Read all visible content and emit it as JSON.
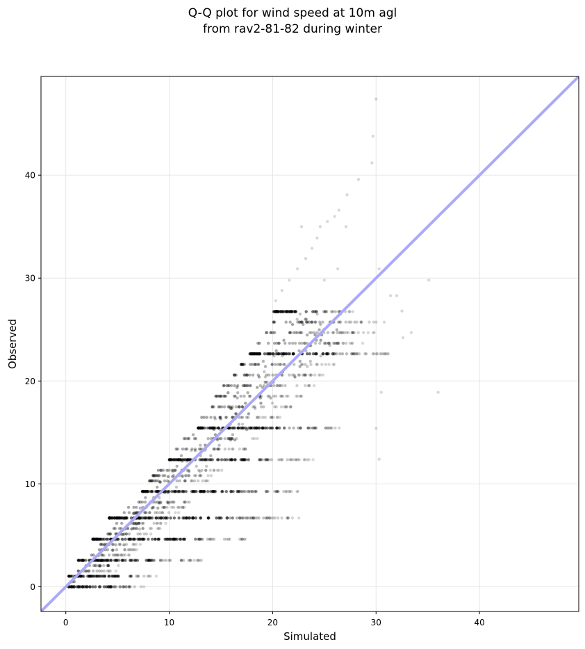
{
  "chart_data": {
    "type": "scatter",
    "title": [
      "Q-Q plot for wind speed at 10m agl",
      "from rav2-81-82 during winter"
    ],
    "xlabel": "Simulated",
    "ylabel": "Observed",
    "xlim": [
      -2.4,
      49.6
    ],
    "ylim": [
      -2.4,
      49.6
    ],
    "xticks": [
      0,
      10,
      20,
      30,
      40
    ],
    "yticks": [
      0,
      10,
      20,
      30,
      40
    ],
    "grid": true,
    "reference_line": {
      "slope": 1,
      "intercept": 0,
      "color": "#aaaaf5"
    },
    "point_color": "#000000",
    "observed_levels": [
      0,
      1.03,
      1.54,
      2.06,
      2.57,
      3.09,
      3.6,
      4.12,
      4.63,
      5.14,
      5.66,
      6.17,
      6.69,
      7.2,
      7.72,
      8.23,
      9.26,
      10.29,
      10.8,
      11.32,
      12.35,
      13.38,
      14.4,
      15.43,
      16.46,
      17.49,
      18.52,
      19.55,
      20.58,
      21.61,
      22.64,
      23.67,
      24.7,
      25.72,
      26.75
    ],
    "observed_level_ranges": [
      {
        "y": 0,
        "x": [
          0.1,
          7.6
        ]
      },
      {
        "y": 1.03,
        "x": [
          0.3,
          8.8
        ]
      },
      {
        "y": 2.57,
        "x": [
          1.2,
          13.3
        ]
      },
      {
        "y": 4.63,
        "x": [
          2.6,
          17.5
        ]
      },
      {
        "y": 6.69,
        "x": [
          4.2,
          22.6
        ]
      },
      {
        "y": 9.26,
        "x": [
          7.4,
          23.2
        ]
      },
      {
        "y": 12.35,
        "x": [
          10.0,
          24.0
        ]
      },
      {
        "y": 15.43,
        "x": [
          12.8,
          27.3
        ]
      },
      {
        "y": 18.99,
        "x": [
          15.7,
          29.5
        ]
      },
      {
        "y": 22.64,
        "x": [
          17.8,
          31.2
        ]
      },
      {
        "y": 26.75,
        "x": [
          20.1,
          28.0
        ]
      }
    ],
    "upper_tail_points": [
      {
        "x": 20.3,
        "y": 27.8
      },
      {
        "x": 20.9,
        "y": 28.8
      },
      {
        "x": 21.6,
        "y": 29.8
      },
      {
        "x": 22.4,
        "y": 30.9
      },
      {
        "x": 23.2,
        "y": 31.9
      },
      {
        "x": 23.8,
        "y": 32.9
      },
      {
        "x": 24.3,
        "y": 33.9
      },
      {
        "x": 24.6,
        "y": 35.0
      },
      {
        "x": 25.3,
        "y": 35.5
      },
      {
        "x": 26.0,
        "y": 36.0
      },
      {
        "x": 26.4,
        "y": 36.6
      },
      {
        "x": 27.2,
        "y": 38.1
      },
      {
        "x": 28.3,
        "y": 39.6
      },
      {
        "x": 29.6,
        "y": 41.2
      },
      {
        "x": 29.7,
        "y": 43.8
      },
      {
        "x": 30.0,
        "y": 47.4
      },
      {
        "x": 22.8,
        "y": 35.0
      },
      {
        "x": 27.1,
        "y": 35.0
      },
      {
        "x": 26.3,
        "y": 30.9
      },
      {
        "x": 25.0,
        "y": 29.8
      },
      {
        "x": 30.3,
        "y": 30.9
      },
      {
        "x": 35.1,
        "y": 29.8
      },
      {
        "x": 31.4,
        "y": 28.3
      },
      {
        "x": 32.0,
        "y": 28.3
      },
      {
        "x": 32.5,
        "y": 26.8
      },
      {
        "x": 33.4,
        "y": 24.7
      },
      {
        "x": 32.6,
        "y": 24.2
      },
      {
        "x": 36.0,
        "y": 18.9
      },
      {
        "x": 30.3,
        "y": 12.4
      },
      {
        "x": 30.0,
        "y": 15.4
      },
      {
        "x": 30.5,
        "y": 18.9
      }
    ]
  }
}
